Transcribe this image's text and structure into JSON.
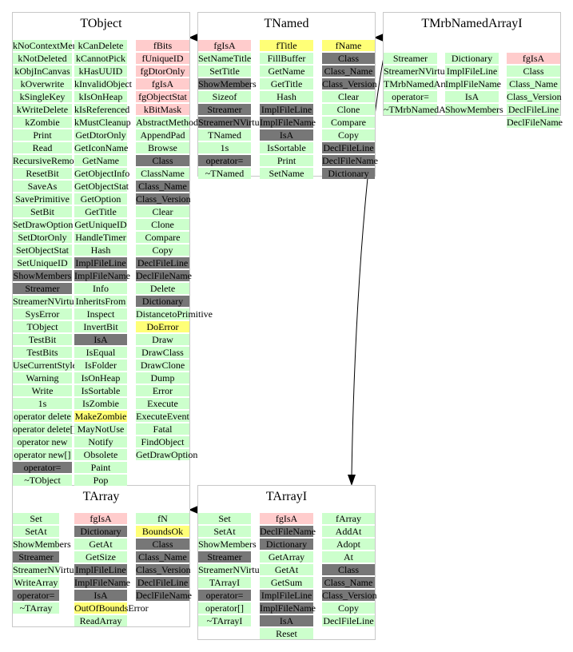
{
  "colors": {
    "public_method": "#ccffcc",
    "dark_method": "#777777",
    "data_member": "#ffcccc",
    "highlighted": "#ffff77",
    "box_border": "#c8c8c8",
    "arrow": "#000000"
  },
  "classes": {
    "tobject": {
      "title": "TObject",
      "col1": [
        "kNoContextMenu",
        "kNotDeleted",
        "kObjInCanvas",
        "kOverwrite",
        "kSingleKey",
        "kWriteDelete",
        "kZombie",
        "Print",
        "Read",
        "RecursiveRemove",
        "ResetBit",
        "SaveAs",
        "SavePrimitive",
        "SetBit",
        "SetDrawOption",
        "SetDtorOnly",
        "SetObjectStat",
        "SetUniqueID",
        "ShowMembers",
        "Streamer",
        "StreamerNVirtual",
        "SysError",
        "TObject",
        "TestBit",
        "TestBits",
        "UseCurrentStyle",
        "Warning",
        "Write",
        "1s",
        "operator delete",
        "operator delete[]",
        "operator new",
        "operator new[]",
        "operator=",
        "~TObject"
      ],
      "col2": [
        "kCanDelete",
        "kCannotPick",
        "kHasUUID",
        "kInvalidObject",
        "kIsOnHeap",
        "kIsReferenced",
        "kMustCleanup",
        "GetDtorOnly",
        "GetIconName",
        "GetName",
        "GetObjectInfo",
        "GetObjectStat",
        "GetOption",
        "GetTitle",
        "GetUniqueID",
        "HandleTimer",
        "Hash",
        "ImplFileLine",
        "ImplFileName",
        "Info",
        "InheritsFrom",
        "Inspect",
        "InvertBit",
        "IsA",
        "IsEqual",
        "IsFolder",
        "IsOnHeap",
        "IsSortable",
        "IsZombie",
        "MakeZombie",
        "MayNotUse",
        "Notify",
        "Obsolete",
        "Paint",
        "Pop"
      ],
      "col3": [
        "fBits",
        "fUniqueID",
        "fgDtorOnly",
        "fgIsA",
        "fgObjectStat",
        "kBitMask",
        "AbstractMethod",
        "AppendPad",
        "Browse",
        "Class",
        "ClassName",
        "Class_Name",
        "Class_Version",
        "Clear",
        "Clone",
        "Compare",
        "Copy",
        "DeclFileLine",
        "DeclFileName",
        "Delete",
        "Dictionary",
        "DistancetoPrimitive",
        "DoError",
        "Draw",
        "DrawClass",
        "DrawClone",
        "Dump",
        "Error",
        "Execute",
        "ExecuteEvent",
        "Fatal",
        "FindObject",
        "GetDrawOption"
      ]
    },
    "tnamed": {
      "title": "TNamed",
      "col1": [
        "fgIsA",
        "SetNameTitle",
        "SetTitle",
        "ShowMembers",
        "Sizeof",
        "Streamer",
        "StreamerNVirtual",
        "TNamed",
        "1s",
        "operator=",
        "~TNamed"
      ],
      "col2": [
        "fTitle",
        "FillBuffer",
        "GetName",
        "GetTitle",
        "Hash",
        "ImplFileLine",
        "ImplFileName",
        "IsA",
        "IsSortable",
        "Print",
        "SetName"
      ],
      "col3": [
        "fName",
        "Class",
        "Class_Name",
        "Class_Version",
        "Clear",
        "Clone",
        "Compare",
        "Copy",
        "DeclFileLine",
        "DeclFileName",
        "Dictionary"
      ]
    },
    "tmrb": {
      "title": "TMrbNamedArrayI",
      "col1": [
        "Streamer",
        "StreamerNVirtual",
        "TMrbNamedArrayI",
        "operator=",
        "~TMrbNamedArrayI"
      ],
      "col2": [
        "Dictionary",
        "ImplFileLine",
        "ImplFileName",
        "IsA",
        "ShowMembers"
      ],
      "col3": [
        "fgIsA",
        "Class",
        "Class_Name",
        "Class_Version",
        "DeclFileLine",
        "DeclFileName"
      ]
    },
    "tarray": {
      "title": "TArray",
      "col1": [
        "Set",
        "SetAt",
        "ShowMembers",
        "Streamer",
        "StreamerNVirtual",
        "WriteArray",
        "operator=",
        "~TArray"
      ],
      "col2": [
        "fgIsA",
        "Dictionary",
        "GetAt",
        "GetSize",
        "ImplFileLine",
        "ImplFileName",
        "IsA",
        "OutOfBoundsError",
        "ReadArray"
      ],
      "col3": [
        "fN",
        "BoundsOk",
        "Class",
        "Class_Name",
        "Class_Version",
        "DeclFileLine",
        "DeclFileName"
      ]
    },
    "tarrayi": {
      "title": "TArrayI",
      "col1": [
        "Set",
        "SetAt",
        "ShowMembers",
        "Streamer",
        "StreamerNVirtual",
        "TArrayI",
        "operator=",
        "operator[]",
        "~TArrayI"
      ],
      "col2": [
        "fgIsA",
        "DeclFileName",
        "Dictionary",
        "GetArray",
        "GetAt",
        "GetSum",
        "ImplFileLine",
        "ImplFileName",
        "IsA",
        "Reset"
      ],
      "col3": [
        "fArray",
        "AddAt",
        "Adopt",
        "At",
        "Class",
        "Class_Name",
        "Class_Version",
        "Copy",
        "DeclFileLine"
      ]
    }
  }
}
